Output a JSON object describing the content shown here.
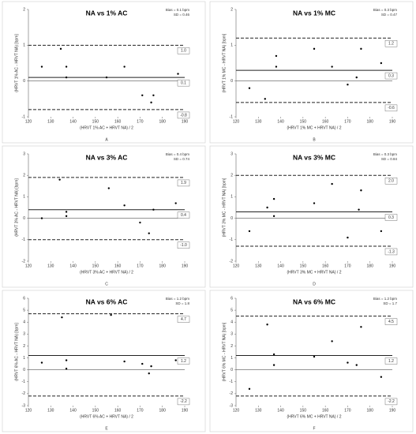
{
  "chart_data": [
    {
      "type": "scatter",
      "title": "NA vs 1% AC",
      "annotations": [
        "Bias = 0.1 bpm",
        "SD = 0.46"
      ],
      "x_label": "(HRVT 1% AC + HRVT NA) / 2",
      "y_label": "(HRVT 1% AC - HRVT NA) [bpm]",
      "label": "A",
      "color": "#000000",
      "x": [
        126,
        134.5,
        137,
        137,
        155,
        163,
        171,
        175,
        176,
        187
      ],
      "y": [
        0.4,
        0.9,
        0.4,
        0.1,
        0.1,
        0.4,
        -0.4,
        -0.6,
        -0.4,
        0.2
      ],
      "xlim": [
        120,
        190
      ],
      "xticks": [
        120,
        130,
        140,
        150,
        160,
        170,
        180,
        190
      ],
      "ylim": [
        -1,
        2
      ],
      "yticks": [
        -1,
        0,
        1,
        2
      ],
      "reference_lines": [
        {
          "value": 1.0,
          "label": "1.0",
          "style": "dashed"
        },
        {
          "value": 0.1,
          "label": "0.1",
          "style": "solid"
        },
        {
          "value": -0.8,
          "label": "-0.8",
          "style": "dashed"
        }
      ]
    },
    {
      "type": "scatter",
      "title": "NA vs 1% MC",
      "annotations": [
        "Bias = 0.3 bpm",
        "SD = 0.47"
      ],
      "x_label": "(HRVT 1% MC + HRVT NA) / 2",
      "y_label": "(HRVT 1% MC - HRVT NA) [bpm]",
      "label": "B",
      "color": "#000000",
      "x": [
        126,
        133,
        138,
        138,
        155,
        163,
        170,
        174,
        176,
        185
      ],
      "y": [
        -0.2,
        -0.5,
        0.7,
        0.4,
        0.9,
        0.4,
        -0.1,
        0.1,
        0.9,
        0.5
      ],
      "xlim": [
        120,
        190
      ],
      "xticks": [
        120,
        130,
        140,
        150,
        160,
        170,
        180,
        190
      ],
      "ylim": [
        -1,
        2
      ],
      "yticks": [
        -1,
        0,
        1,
        2
      ],
      "reference_lines": [
        {
          "value": 1.2,
          "label": "1.2",
          "style": "dashed"
        },
        {
          "value": 0.3,
          "label": "0.3",
          "style": "solid"
        },
        {
          "value": -0.6,
          "label": "-0.6",
          "style": "dashed"
        }
      ]
    },
    {
      "type": "scatter",
      "title": "NA vs 3% AC",
      "annotations": [
        "Bias = 0.4 bpm",
        "SD = 0.74"
      ],
      "x_label": "(HRVT 3% AC + HRVT NA) / 2",
      "y_label": "(HRVT 3% AC - HRVT NA) [bpm]",
      "label": "C",
      "color": "#000000",
      "x": [
        126,
        134,
        137,
        137,
        156,
        163,
        170,
        174,
        176,
        186
      ],
      "y": [
        0,
        1.8,
        0.3,
        0.1,
        1.4,
        0.6,
        -0.2,
        -0.7,
        0.4,
        0.7
      ],
      "xlim": [
        120,
        190
      ],
      "xticks": [
        120,
        130,
        140,
        150,
        160,
        170,
        180,
        190
      ],
      "ylim": [
        -2,
        3
      ],
      "yticks": [
        -2,
        -1,
        0,
        1,
        2,
        3
      ],
      "reference_lines": [
        {
          "value": 1.9,
          "label": "1.9",
          "style": "dashed"
        },
        {
          "value": 0.4,
          "label": "0.4",
          "style": "solid"
        },
        {
          "value": -1.0,
          "label": "-1.0",
          "style": "dashed"
        }
      ]
    },
    {
      "type": "scatter",
      "title": "NA vs 3% MC",
      "annotations": [
        "Bias = 0.3 bpm",
        "SD = 0.84"
      ],
      "x_label": "(HRVT 3% MC + HRVT NA) / 2",
      "y_label": "(HRVT 3% MC - HRVT NA) [bpm]",
      "label": "D",
      "color": "#000000",
      "x": [
        126,
        134,
        137,
        137,
        155,
        163,
        170,
        175,
        176,
        185
      ],
      "y": [
        -0.6,
        0.5,
        0.1,
        0.9,
        0.7,
        1.6,
        -0.9,
        0.4,
        1.3,
        -0.6
      ],
      "xlim": [
        120,
        190
      ],
      "xticks": [
        120,
        130,
        140,
        150,
        160,
        170,
        180,
        190
      ],
      "ylim": [
        -2,
        3
      ],
      "yticks": [
        -2,
        -1,
        0,
        1,
        2,
        3
      ],
      "reference_lines": [
        {
          "value": 2.0,
          "label": "2.0",
          "style": "dashed"
        },
        {
          "value": 0.3,
          "label": "0.3",
          "style": "solid"
        },
        {
          "value": -1.3,
          "label": "-1.3",
          "style": "dashed"
        }
      ]
    },
    {
      "type": "scatter",
      "title": "NA vs 6% AC",
      "annotations": [
        "Bias = 1.2 bpm",
        "SD = 1.8"
      ],
      "x_label": "(HRVT 6% AC + HRVT NA) / 2",
      "y_label": "(HRVT 6% AC - HRVT NA) [bpm]",
      "label": "E",
      "color": "#000000",
      "x": [
        126,
        135,
        137,
        137,
        157,
        163,
        171,
        174,
        175,
        186
      ],
      "y": [
        0.6,
        4.4,
        0.8,
        0.1,
        4.6,
        0.7,
        0.5,
        -0.3,
        0.3,
        0.8
      ],
      "xlim": [
        120,
        190
      ],
      "xticks": [
        120,
        130,
        140,
        150,
        160,
        170,
        180,
        190
      ],
      "ylim": [
        -3,
        6
      ],
      "yticks": [
        -3,
        -2,
        -1,
        0,
        1,
        2,
        3,
        4,
        5,
        6
      ],
      "reference_lines": [
        {
          "value": 4.7,
          "label": "4.7",
          "style": "dashed"
        },
        {
          "value": 1.2,
          "label": "1.2",
          "style": "solid"
        },
        {
          "value": -2.2,
          "label": "-2.2",
          "style": "dashed"
        }
      ]
    },
    {
      "type": "scatter",
      "title": "NA vs 6% MC",
      "annotations": [
        "Bias = 1.2 bpm",
        "SD = 1.7"
      ],
      "x_label": "(HRVT 6% MC + HRVT NA) / 2",
      "y_label": "(HRVT 6% MC - HRVT NA) [bpm]",
      "label": "F",
      "color": "#000000",
      "x": [
        126,
        134,
        137,
        137,
        155,
        163,
        170,
        174,
        176,
        185
      ],
      "y": [
        -1.6,
        3.8,
        1.3,
        0.4,
        1.1,
        2.4,
        0.6,
        0.4,
        3.6,
        -0.6
      ],
      "xlim": [
        120,
        190
      ],
      "xticks": [
        120,
        130,
        140,
        150,
        160,
        170,
        180,
        190
      ],
      "ylim": [
        -3,
        6
      ],
      "yticks": [
        -3,
        -2,
        -1,
        0,
        1,
        2,
        3,
        4,
        5,
        6
      ],
      "reference_lines": [
        {
          "value": 4.5,
          "label": "4.5",
          "style": "dashed"
        },
        {
          "value": 1.2,
          "label": "1.2",
          "style": "solid"
        },
        {
          "value": -2.2,
          "label": "-2.2",
          "style": "dashed"
        }
      ]
    }
  ]
}
